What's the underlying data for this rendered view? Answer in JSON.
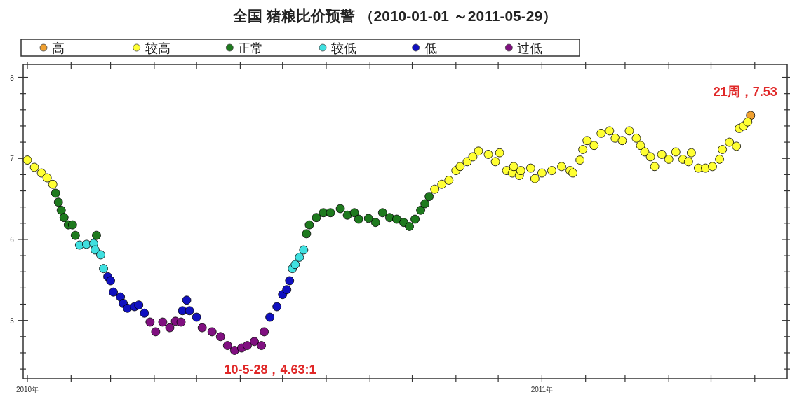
{
  "chart_data": {
    "type": "scatter",
    "title": "全国 猪粮比价预警 （2010-01-01 ～2011-05-29）",
    "legend": "top",
    "marker": "circle",
    "xlim": [
      "2009-12-29",
      "2011-06-24"
    ],
    "xticks": [
      {
        "value": "2010-01-01",
        "label": "2010年"
      },
      {
        "value": "2010-02-01",
        "label": null
      },
      {
        "value": "2010-03-01",
        "label": null
      },
      {
        "value": "2010-04-01",
        "label": null
      },
      {
        "value": "2010-05-01",
        "label": null
      },
      {
        "value": "2010-06-01",
        "label": null
      },
      {
        "value": "2010-07-01",
        "label": null
      },
      {
        "value": "2010-08-01",
        "label": null
      },
      {
        "value": "2010-09-01",
        "label": null
      },
      {
        "value": "2010-10-01",
        "label": null
      },
      {
        "value": "2010-11-01",
        "label": null
      },
      {
        "value": "2010-12-01",
        "label": null
      },
      {
        "value": "2011-01-01",
        "label": "2011年"
      },
      {
        "value": "2011-02-01",
        "label": null
      },
      {
        "value": "2011-03-01",
        "label": null
      },
      {
        "value": "2011-04-01",
        "label": null
      },
      {
        "value": "2011-05-01",
        "label": null
      },
      {
        "value": "2011-06-01",
        "label": null
      }
    ],
    "ylim": [
      4.28,
      8.16
    ],
    "yticks": [
      {
        "value": 4.4,
        "label": null
      },
      {
        "value": 4.6,
        "label": null
      },
      {
        "value": 4.8,
        "label": null
      },
      5,
      {
        "value": 5.2,
        "label": null
      },
      {
        "value": 5.4,
        "label": null
      },
      {
        "value": 5.6,
        "label": null
      },
      {
        "value": 5.8,
        "label": null
      },
      6,
      {
        "value": 6.2,
        "label": null
      },
      {
        "value": 6.4,
        "label": null
      },
      {
        "value": 6.6,
        "label": null
      },
      {
        "value": 6.8,
        "label": null
      },
      7,
      {
        "value": 7.2,
        "label": null
      },
      {
        "value": 7.4,
        "label": null
      },
      {
        "value": 7.6,
        "label": null
      },
      {
        "value": 7.8,
        "label": null
      },
      8
    ],
    "series": [
      {
        "name": "高",
        "color": "#f0a030",
        "x": [
          "2011-05-29"
        ],
        "values": [
          7.53
        ]
      },
      {
        "name": "较高",
        "color": "#ffff33",
        "x": [
          "2010-01-01",
          "2010-01-06",
          "2010-01-11",
          "2010-01-15",
          "2010-01-19",
          "2010-10-17",
          "2010-10-22",
          "2010-10-27",
          "2010-11-01",
          "2010-11-04",
          "2010-11-09",
          "2010-11-13",
          "2010-11-17",
          "2010-11-24",
          "2010-11-29",
          "2010-12-02",
          "2010-12-07",
          "2010-12-11",
          "2010-12-12",
          "2010-12-16",
          "2010-12-17",
          "2010-12-24",
          "2010-12-27",
          "2011-01-01",
          "2011-01-08",
          "2011-01-15",
          "2011-01-21",
          "2011-01-23",
          "2011-01-28",
          "2011-01-30",
          "2011-02-02",
          "2011-02-07",
          "2011-02-12",
          "2011-02-18",
          "2011-02-22",
          "2011-02-27",
          "2011-03-04",
          "2011-03-09",
          "2011-03-12",
          "2011-03-15",
          "2011-03-19",
          "2011-03-22",
          "2011-03-27",
          "2011-04-01",
          "2011-04-06",
          "2011-04-11",
          "2011-04-15",
          "2011-04-17",
          "2011-04-22",
          "2011-04-27",
          "2011-05-02",
          "2011-05-07",
          "2011-05-09",
          "2011-05-14",
          "2011-05-19",
          "2011-05-21",
          "2011-05-24",
          "2011-05-27"
        ],
        "values": [
          6.98,
          6.89,
          6.82,
          6.76,
          6.68,
          6.62,
          6.68,
          6.73,
          6.85,
          6.9,
          6.96,
          7.02,
          7.09,
          7.05,
          6.96,
          7.07,
          6.85,
          6.82,
          6.9,
          6.79,
          6.85,
          6.88,
          6.75,
          6.82,
          6.85,
          6.9,
          6.85,
          6.82,
          6.98,
          7.11,
          7.22,
          7.16,
          7.31,
          7.34,
          7.25,
          7.22,
          7.34,
          7.25,
          7.16,
          7.08,
          7.02,
          6.9,
          7.05,
          6.99,
          7.08,
          6.99,
          6.96,
          7.07,
          6.88,
          6.88,
          6.9,
          6.99,
          7.11,
          7.2,
          7.15,
          7.37,
          7.4,
          7.45
        ]
      },
      {
        "name": "正常",
        "color": "#1e7a1e",
        "x": [
          "2010-01-21",
          "2010-01-23",
          "2010-01-25",
          "2010-01-27",
          "2010-01-30",
          "2010-02-02",
          "2010-02-04",
          "2010-02-19",
          "2010-07-18",
          "2010-07-20",
          "2010-07-25",
          "2010-07-30",
          "2010-08-04",
          "2010-08-11",
          "2010-08-16",
          "2010-08-21",
          "2010-08-24",
          "2010-08-31",
          "2010-09-05",
          "2010-09-10",
          "2010-09-15",
          "2010-09-20",
          "2010-09-25",
          "2010-09-29",
          "2010-10-03",
          "2010-10-07",
          "2010-10-10",
          "2010-10-13"
        ],
        "values": [
          6.57,
          6.46,
          6.36,
          6.27,
          6.18,
          6.18,
          6.05,
          6.05,
          6.07,
          6.18,
          6.27,
          6.33,
          6.33,
          6.38,
          6.3,
          6.33,
          6.25,
          6.26,
          6.21,
          6.33,
          6.27,
          6.25,
          6.21,
          6.16,
          6.25,
          6.36,
          6.44,
          6.53
        ]
      },
      {
        "name": "较低",
        "color": "#40e0e0",
        "x": [
          "2010-02-07",
          "2010-02-12",
          "2010-02-17",
          "2010-02-18",
          "2010-02-22",
          "2010-02-24",
          "2010-07-08",
          "2010-07-10",
          "2010-07-13",
          "2010-07-16"
        ],
        "values": [
          5.93,
          5.94,
          5.95,
          5.87,
          5.81,
          5.64,
          5.64,
          5.69,
          5.78,
          5.87
        ]
      },
      {
        "name": "低",
        "color": "#1010c0",
        "x": [
          "2010-02-27",
          "2010-03-01",
          "2010-03-03",
          "2010-03-08",
          "2010-03-10",
          "2010-03-13",
          "2010-03-18",
          "2010-03-21",
          "2010-03-25",
          "2010-04-21",
          "2010-04-24",
          "2010-04-26",
          "2010-05-01",
          "2010-06-22",
          "2010-06-27",
          "2010-07-01",
          "2010-07-04",
          "2010-07-06"
        ],
        "values": [
          5.54,
          5.49,
          5.35,
          5.29,
          5.21,
          5.15,
          5.17,
          5.19,
          5.09,
          5.12,
          5.25,
          5.12,
          5.04,
          5.04,
          5.17,
          5.32,
          5.38,
          5.49
        ]
      },
      {
        "name": "过低",
        "color": "#801080",
        "x": [
          "2010-03-29",
          "2010-04-02",
          "2010-04-07",
          "2010-04-12",
          "2010-04-16",
          "2010-04-20",
          "2010-05-05",
          "2010-05-12",
          "2010-05-18",
          "2010-05-23",
          "2010-05-28",
          "2010-06-02",
          "2010-06-06",
          "2010-06-11",
          "2010-06-16",
          "2010-06-18"
        ],
        "values": [
          4.98,
          4.86,
          4.98,
          4.91,
          4.99,
          4.98,
          4.91,
          4.86,
          4.8,
          4.69,
          4.63,
          4.66,
          4.69,
          4.74,
          4.69,
          4.86
        ]
      }
    ],
    "annotations": [
      {
        "text": "21周，7.53",
        "x": "2011-05-29",
        "y": 7.53
      },
      {
        "text": "10-5-28，4.63:1",
        "x": "2010-05-28",
        "y": 4.63
      }
    ]
  }
}
